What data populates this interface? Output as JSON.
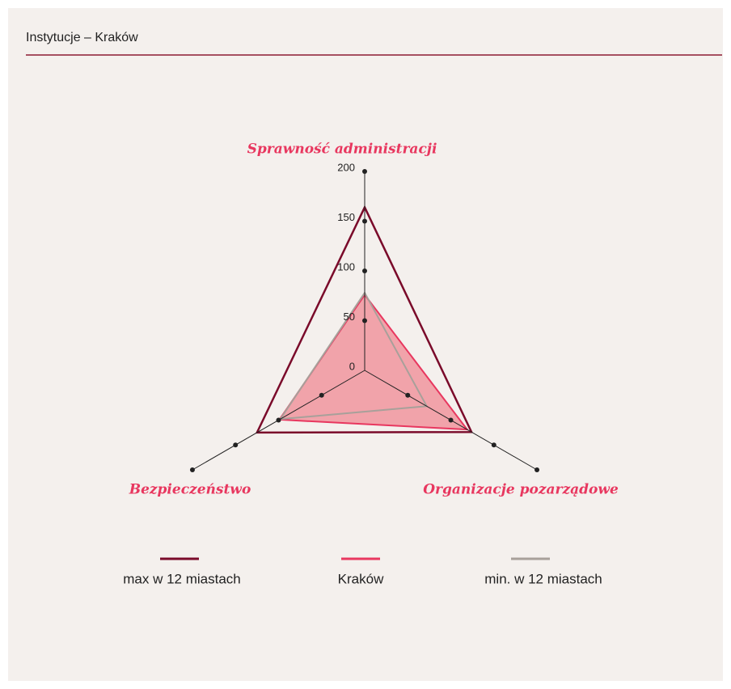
{
  "chart_data": {
    "type": "radar",
    "title": "Instytucje – Kraków",
    "categories": [
      "Sprawność administracji",
      "Organizacje pozarządowe",
      "Bezpieczeństwo"
    ],
    "rlim": [
      0,
      200
    ],
    "rticks": [
      0,
      50,
      100,
      150,
      200
    ],
    "series": [
      {
        "name": "max w 12 miastach",
        "color": "#7a0a2a",
        "values": [
          164,
          124,
          125
        ]
      },
      {
        "name": "Kraków",
        "color": "#e8375f",
        "fill": "#f07a85",
        "values": [
          76,
          119,
          99
        ]
      },
      {
        "name": "min. w 12 miastach",
        "color": "#a8a09a",
        "values": [
          78,
          72,
          98
        ]
      }
    ]
  }
}
